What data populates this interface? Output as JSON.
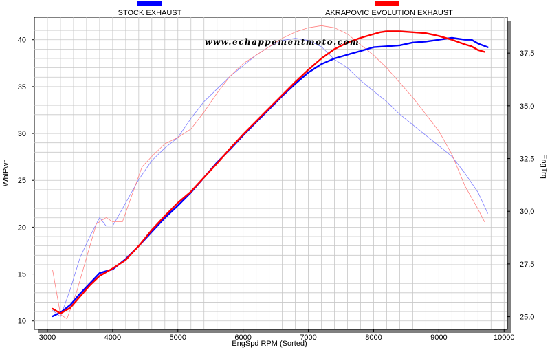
{
  "watermark": "www.echappementmoto.com",
  "chart_data": {
    "type": "line",
    "xlabel": "EngSpd  RPM   (Sorted)",
    "ylabel_left": "WhlPwr",
    "ylabel_right": "EngTrq",
    "xlim": [
      2800,
      10050
    ],
    "ylim_left": [
      9.1,
      42.4
    ],
    "ylim_right": [
      24.4,
      39.2
    ],
    "x_ticks": [
      3000,
      4000,
      5000,
      6000,
      7000,
      8000,
      9000,
      10000
    ],
    "y_left_ticks": [
      10,
      15,
      20,
      25,
      30,
      35,
      40
    ],
    "y_right_ticks": [
      25.0,
      27.5,
      30.0,
      32.5,
      35.0,
      37.5
    ],
    "y_right_tick_labels": [
      "25,0",
      "27,5",
      "30,0",
      "32,5",
      "35,0",
      "37,5"
    ],
    "grid": true,
    "legend_placement": "top",
    "series": [
      {
        "name": "STOCK EXHAUST",
        "color": "#0000ff",
        "axis": "left",
        "x": [
          3080,
          3200,
          3350,
          3500,
          3650,
          3800,
          4000,
          4200,
          4400,
          4600,
          4800,
          5000,
          5200,
          5400,
          5600,
          5800,
          6000,
          6200,
          6400,
          6600,
          6800,
          7000,
          7200,
          7400,
          7600,
          7800,
          8000,
          8200,
          8400,
          8600,
          8800,
          9000,
          9200,
          9400,
          9500,
          9600,
          9750
        ],
        "values": [
          10.5,
          10.9,
          11.7,
          12.9,
          14.0,
          15.1,
          15.5,
          16.6,
          18.0,
          19.5,
          21.0,
          22.3,
          23.7,
          25.3,
          26.9,
          28.3,
          29.8,
          31.2,
          32.6,
          34.0,
          35.3,
          36.5,
          37.4,
          38.0,
          38.4,
          38.8,
          39.2,
          39.3,
          39.4,
          39.7,
          39.8,
          40.0,
          40.2,
          40.0,
          40.0,
          39.6,
          39.2
        ]
      },
      {
        "name": "AKRAPOVIC EVOLUTION EXHAUST",
        "color": "#ff0000",
        "axis": "left",
        "x": [
          3080,
          3200,
          3350,
          3500,
          3650,
          3800,
          4000,
          4200,
          4400,
          4600,
          4800,
          5000,
          5200,
          5400,
          5600,
          5800,
          6000,
          6200,
          6400,
          6600,
          6800,
          7000,
          7200,
          7400,
          7600,
          7800,
          8000,
          8100,
          8200,
          8300,
          8400,
          8600,
          8800,
          9000,
          9200,
          9400,
          9500,
          9600,
          9700
        ],
        "values": [
          11.3,
          10.8,
          11.4,
          12.6,
          13.8,
          14.8,
          15.6,
          16.5,
          18.0,
          19.7,
          21.2,
          22.6,
          23.8,
          25.3,
          26.8,
          28.4,
          29.9,
          31.3,
          32.7,
          34.1,
          35.5,
          36.8,
          38.0,
          39.0,
          39.7,
          40.2,
          40.6,
          40.8,
          40.9,
          40.9,
          40.9,
          40.8,
          40.7,
          40.4,
          40.0,
          39.5,
          39.3,
          38.9,
          38.7
        ]
      },
      {
        "name": "STOCK EXHAUST (EngTrq)",
        "color": "#8080ff",
        "axis": "right",
        "x": [
          3080,
          3200,
          3350,
          3500,
          3650,
          3800,
          3900,
          4000,
          4200,
          4400,
          4600,
          4800,
          5000,
          5200,
          5400,
          5600,
          5800,
          6000,
          6200,
          6400,
          6600,
          6800,
          7000,
          7200,
          7400,
          7600,
          7800,
          8000,
          8200,
          8400,
          8600,
          8800,
          9000,
          9200,
          9400,
          9600,
          9750
        ],
        "values": [
          25.3,
          25.0,
          26.3,
          27.8,
          28.8,
          29.7,
          29.3,
          29.3,
          30.4,
          31.5,
          32.4,
          33.0,
          33.5,
          34.4,
          35.2,
          35.8,
          36.4,
          36.9,
          37.4,
          37.8,
          38.1,
          38.2,
          38.1,
          37.8,
          37.2,
          36.8,
          36.2,
          35.7,
          35.2,
          34.6,
          34.1,
          33.6,
          33.1,
          32.6,
          31.8,
          30.9,
          29.9
        ]
      },
      {
        "name": "AKRAPOVIC EVOLUTION EXHAUST (EngTrq)",
        "color": "#ff8080",
        "axis": "right",
        "x": [
          3080,
          3200,
          3300,
          3450,
          3600,
          3750,
          3900,
          4000,
          4150,
          4300,
          4450,
          4600,
          4800,
          5000,
          5200,
          5400,
          5600,
          5800,
          6000,
          6200,
          6400,
          6600,
          6800,
          7000,
          7200,
          7400,
          7600,
          7800,
          8000,
          8200,
          8400,
          8600,
          8800,
          9000,
          9200,
          9400,
          9600,
          9700
        ],
        "values": [
          27.2,
          25.1,
          24.9,
          26.2,
          27.8,
          29.4,
          29.7,
          29.5,
          29.5,
          30.8,
          32.1,
          32.6,
          33.2,
          33.5,
          33.9,
          34.7,
          35.6,
          36.4,
          37.0,
          37.4,
          37.8,
          38.2,
          38.5,
          38.7,
          38.8,
          38.7,
          38.4,
          37.9,
          37.4,
          36.8,
          36.1,
          35.4,
          34.6,
          33.8,
          32.7,
          31.2,
          30.1,
          29.5
        ]
      }
    ]
  }
}
